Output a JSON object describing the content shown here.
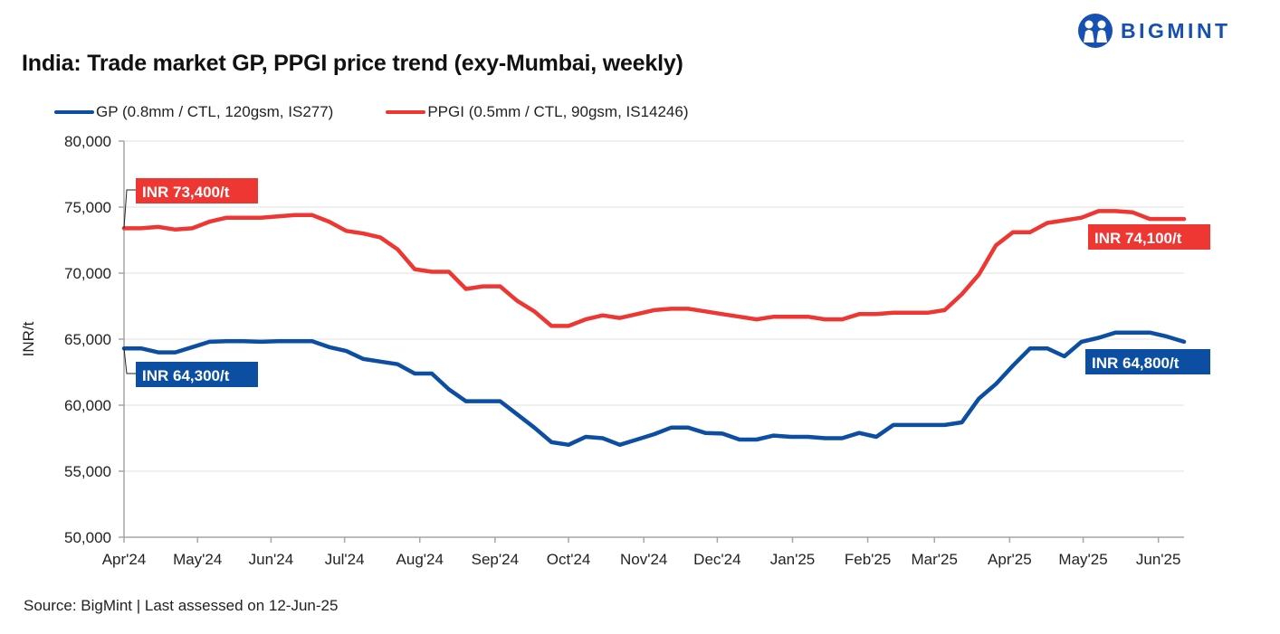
{
  "brand": {
    "name": "BIGMINT",
    "logo_icon": "bigmint-people-icon",
    "color": "#1750b3"
  },
  "footer": {
    "source": "Source: BigMint | Last assessed on 12-Jun-25"
  },
  "chart_data": {
    "type": "line",
    "title": "India: Trade market GP, PPGI price trend (exy-Mumbai, weekly)",
    "xlabel": "",
    "ylabel": "INR/t",
    "ylim": [
      50000,
      80000
    ],
    "yticks": [
      50000,
      55000,
      60000,
      65000,
      70000,
      75000,
      80000
    ],
    "ytick_labels": [
      "50,000",
      "55,000",
      "60,000",
      "65,000",
      "70,000",
      "75,000",
      "80,000"
    ],
    "grid": true,
    "legend_position": "top-left",
    "x_tick_labels": [
      "Apr'24",
      "May'24",
      "Jun'24",
      "Jul'24",
      "Aug'24",
      "Sep'24",
      "Oct'24",
      "Nov'24",
      "Dec'24",
      "Jan'25",
      "Feb'25",
      "Mar'25",
      "Apr'25",
      "May'25",
      "Jun'25"
    ],
    "x_tick_week_index": [
      0,
      4.3,
      8.6,
      12.9,
      17.3,
      21.7,
      26.0,
      30.4,
      34.7,
      39.1,
      43.5,
      47.4,
      51.8,
      56.1,
      60.5
    ],
    "x_week_count": 62,
    "series": [
      {
        "name": "GP (0.8mm / CTL, 120gsm, IS277)",
        "color": "#0b4ea2",
        "values": [
          64300,
          64300,
          64000,
          64000,
          64400,
          64800,
          64850,
          64850,
          64800,
          64850,
          64850,
          64850,
          64400,
          64100,
          63500,
          63300,
          63100,
          62400,
          62400,
          61200,
          60300,
          60300,
          60300,
          59300,
          58300,
          57200,
          57000,
          57600,
          57500,
          57000,
          57400,
          57800,
          58300,
          58300,
          57900,
          57850,
          57400,
          57400,
          57700,
          57600,
          57600,
          57500,
          57500,
          57900,
          57600,
          58500,
          58500,
          58500,
          58500,
          58700,
          60500,
          61600,
          63000,
          64300,
          64300,
          63700,
          64800,
          65100,
          65500,
          65500,
          65500,
          65200,
          64800
        ],
        "end_label": "INR 64,800/t",
        "start_label": "INR 64,300/t"
      },
      {
        "name": "PPGI (0.5mm / CTL, 90gsm, IS14246)",
        "color": "#ee3733",
        "values": [
          73400,
          73400,
          73500,
          73300,
          73400,
          73900,
          74200,
          74200,
          74200,
          74300,
          74400,
          74400,
          73900,
          73200,
          73000,
          72700,
          71800,
          70300,
          70100,
          70100,
          68800,
          69000,
          69000,
          67900,
          67100,
          66000,
          66000,
          66500,
          66800,
          66600,
          66900,
          67200,
          67300,
          67300,
          67100,
          66900,
          66700,
          66500,
          66700,
          66700,
          66700,
          66500,
          66500,
          66900,
          66900,
          67000,
          67000,
          67000,
          67200,
          68400,
          69900,
          72100,
          73100,
          73100,
          73800,
          74000,
          74200,
          74700,
          74700,
          74600,
          74100,
          74100,
          74100
        ],
        "end_label": "INR 74,100/t",
        "start_label": "INR 73,400/t"
      }
    ]
  }
}
